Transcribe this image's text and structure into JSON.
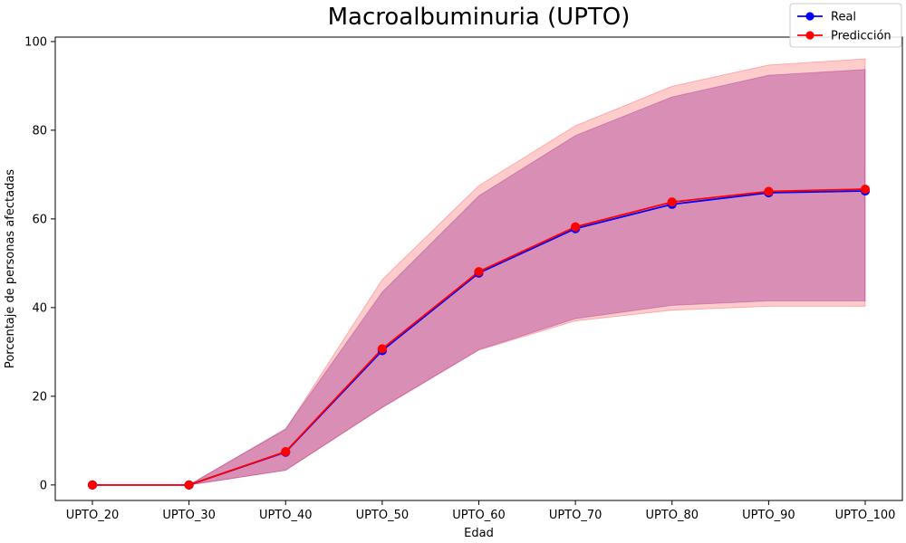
{
  "chart_data": {
    "type": "line",
    "title": "Macroalbuminuria (UPTO)",
    "xlabel": "Edad",
    "ylabel": "Porcentaje de personas afectadas",
    "categories": [
      "UPTO_20",
      "UPTO_30",
      "UPTO_40",
      "UPTO_50",
      "UPTO_60",
      "UPTO_70",
      "UPTO_80",
      "UPTO_90",
      "UPTO_100"
    ],
    "ylim": [
      -3.5,
      101
    ],
    "yticks": [
      0,
      20,
      40,
      60,
      80,
      100
    ],
    "grid": false,
    "legend_position": "top-right",
    "series": [
      {
        "name": "Real",
        "color": "#0000ff",
        "values": [
          0,
          0,
          7.4,
          30.3,
          47.8,
          57.8,
          63.3,
          65.9,
          66.3
        ],
        "band_lower": [
          0,
          0,
          3.3,
          17.5,
          30.5,
          37.5,
          40.5,
          41.5,
          41.5
        ],
        "band_upper": [
          0,
          0,
          12.7,
          43.5,
          65.2,
          78.8,
          87.5,
          92.4,
          93.7
        ],
        "band_color": "#800080"
      },
      {
        "name": "Predicción",
        "color": "#ff0000",
        "values": [
          0,
          0,
          7.5,
          30.7,
          48.1,
          58.2,
          63.8,
          66.2,
          66.7
        ],
        "band_lower": [
          0,
          0,
          3.3,
          17.4,
          30.4,
          37.0,
          39.4,
          40.3,
          40.3
        ],
        "band_upper": [
          0,
          0,
          12.5,
          46.3,
          67.5,
          81.0,
          89.9,
          94.7,
          96.1
        ],
        "band_color": "#ff0000"
      }
    ]
  }
}
